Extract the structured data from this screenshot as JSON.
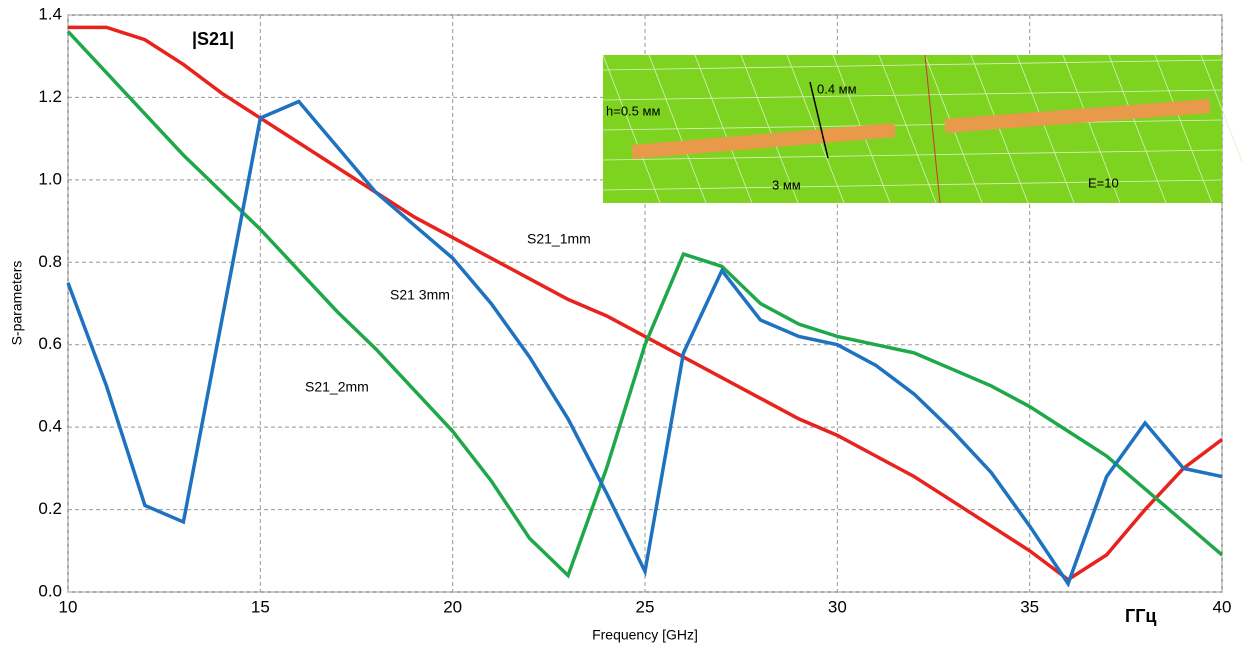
{
  "chart_data": {
    "type": "line",
    "x_label": "Frequency [GHz]",
    "y_label": "S-parameters",
    "x": [
      10,
      11,
      12,
      13,
      14,
      15,
      16,
      17,
      18,
      19,
      20,
      21,
      22,
      23,
      24,
      25,
      26,
      27,
      28,
      29,
      30,
      31,
      32,
      33,
      34,
      35,
      36,
      37,
      38,
      39,
      40
    ],
    "series": [
      {
        "name": "S21_1mm",
        "color": "#e8221c",
        "values": [
          1.37,
          1.37,
          1.34,
          1.28,
          1.21,
          1.15,
          1.09,
          1.03,
          0.97,
          0.91,
          0.86,
          0.81,
          0.76,
          0.71,
          0.67,
          0.62,
          0.57,
          0.52,
          0.47,
          0.42,
          0.38,
          0.33,
          0.28,
          0.22,
          0.16,
          0.1,
          0.03,
          0.09,
          0.2,
          0.3,
          0.37
        ]
      },
      {
        "name": "S21_2mm",
        "color": "#1fa84a",
        "values": [
          1.36,
          1.26,
          1.16,
          1.06,
          0.97,
          0.88,
          0.78,
          0.68,
          0.59,
          0.49,
          0.39,
          0.27,
          0.13,
          0.04,
          0.3,
          0.6,
          0.82,
          0.79,
          0.7,
          0.65,
          0.62,
          0.6,
          0.58,
          0.54,
          0.5,
          0.45,
          0.39,
          0.33,
          0.25,
          0.17,
          0.09
        ]
      },
      {
        "name": "S21 3mm",
        "color": "#1e72c0",
        "values": [
          0.75,
          0.5,
          0.21,
          0.17,
          0.66,
          1.15,
          1.19,
          1.08,
          0.97,
          0.89,
          0.81,
          0.7,
          0.57,
          0.42,
          0.24,
          0.05,
          0.58,
          0.78,
          0.66,
          0.62,
          0.6,
          0.55,
          0.48,
          0.39,
          0.29,
          0.16,
          0.02,
          0.28,
          0.41,
          0.3,
          0.28
        ]
      }
    ],
    "xlim": [
      10,
      40
    ],
    "xticks": [
      10,
      15,
      20,
      25,
      30,
      35,
      40
    ],
    "ylim": [
      0,
      1.4
    ],
    "yticks": [
      {
        "value": 0,
        "label": "0.0"
      },
      0.2,
      0.4,
      0.6,
      0.8,
      {
        "value": 1,
        "label": "1.0"
      },
      1.2,
      1.4
    ],
    "grid": true,
    "annotations": [
      "|S21|",
      "ГГц"
    ],
    "inset_labels": [
      "0.4 мм",
      "h=0.5 мм",
      "3 мм",
      "E=10"
    ]
  }
}
